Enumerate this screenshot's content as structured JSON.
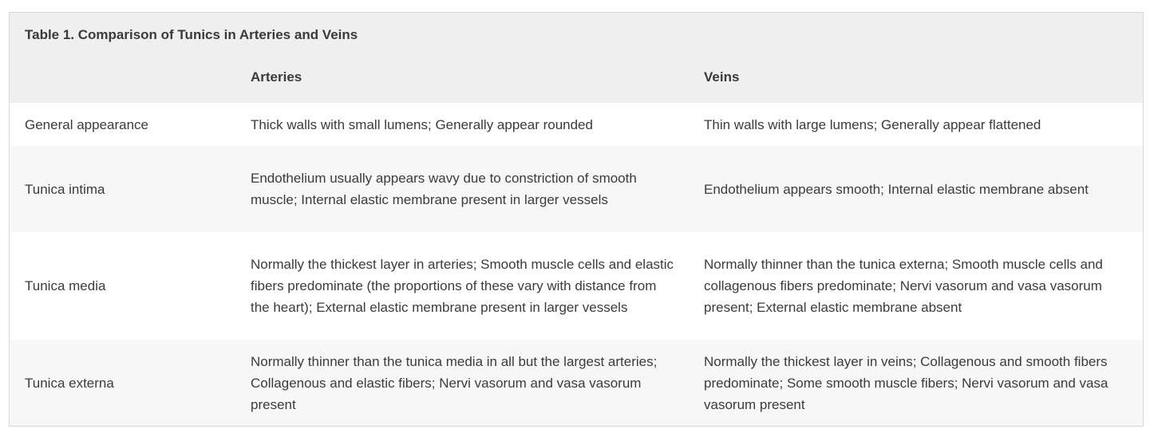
{
  "table": {
    "caption": "Table 1. Comparison of Tunics in Arteries and Veins",
    "headers": [
      "",
      "Arteries",
      "Veins"
    ],
    "rows": [
      {
        "label": "General appearance",
        "arteries": "Thick walls with small lumens; Generally appear rounded",
        "veins": "Thin walls with large lumens; Generally appear flattened"
      },
      {
        "label": "Tunica intima",
        "arteries": "Endothelium usually appears wavy due to constriction of smooth muscle; Internal elastic membrane present in larger vessels",
        "veins": "Endothelium appears smooth; Internal elastic membrane absent"
      },
      {
        "label": "Tunica media",
        "arteries": "Normally the thickest layer in arteries; Smooth muscle cells and elastic fibers predominate (the proportions of these vary with distance from the heart); External elastic membrane present in larger vessels",
        "veins": "Normally thinner than the tunica externa; Smooth muscle cells and collagenous fibers predominate; Nervi vasorum and vasa vasorum present; External elastic membrane absent"
      },
      {
        "label": "Tunica externa",
        "arteries": "Normally thinner than the tunica media in all but the largest arteries; Collagenous and elastic fibers; Nervi vasorum and vasa vasorum present",
        "veins": "Normally the thickest layer in veins; Collagenous and smooth fibers predominate; Some smooth muscle fibers; Nervi vasorum and vasa vasorum present"
      }
    ]
  }
}
